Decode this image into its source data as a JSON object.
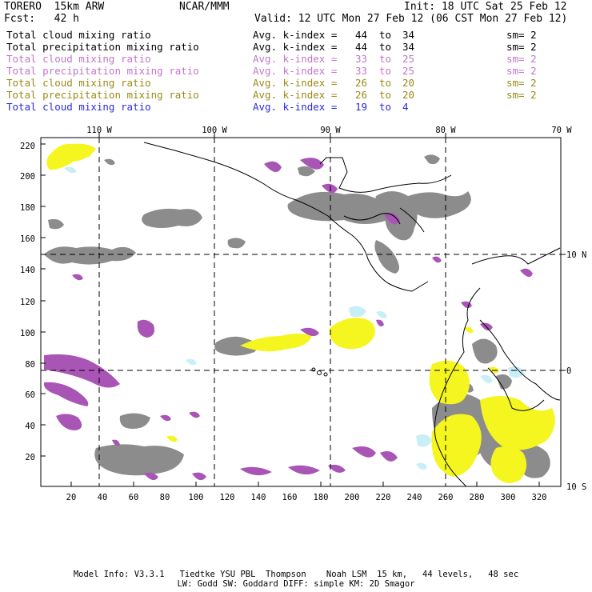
{
  "header": {
    "model": "TORERO  15km ARW",
    "org": "NCAR/MMM",
    "init": "Init: 18 UTC Sat 25 Feb 12",
    "fcst": "Fcst:   42 h",
    "valid": "Valid: 12 UTC Mon 27 Feb 12 (06 CST Mon 27 Feb 12)"
  },
  "legend": [
    {
      "field": "Total cloud mixing ratio",
      "kidx": "Avg. k-index =",
      "a": "44",
      "to": "to",
      "b": "34",
      "sm": "sm= 2",
      "color": "#000000"
    },
    {
      "field": "Total precipitation mixing ratio",
      "kidx": "Avg. k-index =",
      "a": "44",
      "to": "to",
      "b": "34",
      "sm": "sm= 2",
      "color": "#000000"
    },
    {
      "field": "Total cloud mixing ratio",
      "kidx": "Avg. k-index =",
      "a": "33",
      "to": "to",
      "b": "25",
      "sm": "sm= 2",
      "color": "#c077c8"
    },
    {
      "field": "Total precipitation mixing ratio",
      "kidx": "Avg. k-index =",
      "a": "33",
      "to": "to",
      "b": "25",
      "sm": "sm= 2",
      "color": "#c077c8"
    },
    {
      "field": "Total cloud mixing ratio",
      "kidx": "Avg. k-index =",
      "a": "26",
      "to": "to",
      "b": "20",
      "sm": "sm= 2",
      "color": "#9a8a1a"
    },
    {
      "field": "Total precipitation mixing ratio",
      "kidx": "Avg. k-index =",
      "a": "26",
      "to": "to",
      "b": "20",
      "sm": "sm= 2",
      "color": "#9a8a1a"
    },
    {
      "field": "Total cloud mixing ratio",
      "kidx": "Avg. k-index =",
      "a": "19",
      "to": "to",
      "b": "4",
      "sm": "",
      "color": "#2a2ae0"
    }
  ],
  "map": {
    "lon_labels": [
      "110 W",
      "100 W",
      "90 W",
      "80 W",
      "70 W"
    ],
    "lat_labels": [
      "10 N",
      "0",
      "10 S"
    ],
    "y_ticks": [
      "220",
      "200",
      "180",
      "160",
      "140",
      "120",
      "100",
      "80",
      "60",
      "40",
      "20"
    ],
    "x_ticks": [
      "20",
      "40",
      "60",
      "80",
      "100",
      "120",
      "140",
      "160",
      "180",
      "200",
      "220",
      "240",
      "260",
      "280",
      "300",
      "320"
    ],
    "colors": {
      "gray": "#8c8c8c",
      "purple": "#a855b5",
      "yellow": "#f5f520",
      "lightblue": "#c8eef8"
    }
  },
  "footer": {
    "line1": "Model Info: V3.3.1   Tiedtke YSU PBL  Thompson    Noah LSM  15 km,   44 levels,   48 sec",
    "line2": "LW: Godd SW: Goddard DIFF: simple KM: 2D Smagor"
  }
}
